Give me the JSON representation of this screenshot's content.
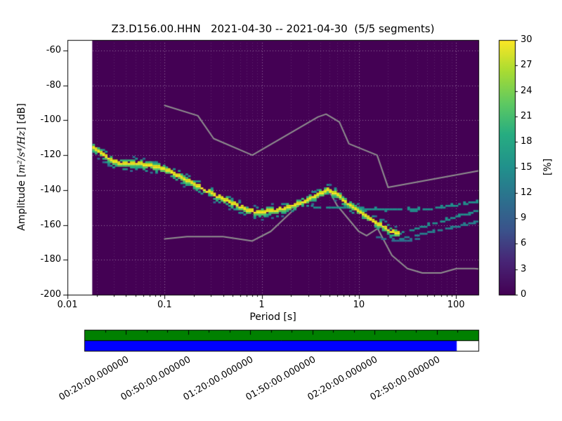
{
  "title": "Z3.D156.00.HHN   2021-04-30 -- 2021-04-30  (5/5 segments)",
  "axes": {
    "xlabel": "Period [s]",
    "ylabel_pre": "Amplitude [",
    "ylabel_math": "m²/s⁴/Hz",
    "ylabel_post": "]  [dB]",
    "x_tick_labels": [
      "0.01",
      "0.1",
      "1",
      "10",
      "100"
    ],
    "y_tick_labels": [
      "-60",
      "-80",
      "-100",
      "-120",
      "-140",
      "-160",
      "-180",
      "-200"
    ]
  },
  "colorbar": {
    "label": "[%]",
    "tick_labels": [
      "0",
      "3",
      "6",
      "9",
      "12",
      "15",
      "18",
      "21",
      "24",
      "27",
      "30"
    ]
  },
  "timeline": {
    "time_labels": [
      "00:20:00.000000",
      "00:50:00.000000",
      "01:20:00.000000",
      "01:50:00.000000",
      "02:20:00.000000",
      "02:50:00.000000"
    ],
    "label_minutes": [
      20,
      50,
      80,
      110,
      140,
      170
    ],
    "total_minutes": 190,
    "green_color": "#008000",
    "blue_color": "#0000ff",
    "blue_coverage_fraction": 0.945
  },
  "chart_data": {
    "type": "heatmap",
    "subtype": "ppsd-probability-histogram",
    "title": "Z3.D156.00.HHN  2021-04-30 -- 2021-04-30  (5/5 segments)",
    "xlabel": "Period [s]",
    "ylabel": "Amplitude [m^2/s^4/Hz] [dB]",
    "xscale": "log",
    "yscale": "linear",
    "xlim": [
      0.01,
      170
    ],
    "ylim": [
      -200,
      -54
    ],
    "x_ticks": [
      0.01,
      0.1,
      1,
      10,
      100
    ],
    "y_ticks": [
      -200,
      -180,
      -160,
      -140,
      -120,
      -100,
      -80,
      -60
    ],
    "grid": true,
    "background": {
      "color": "#440154",
      "percent": 0,
      "data_min_period": 0.018
    },
    "colorbar": {
      "label": "[%]",
      "min": 0,
      "max": 30,
      "ticks": [
        0,
        3,
        6,
        9,
        12,
        15,
        18,
        21,
        24,
        27,
        30
      ],
      "colormap": "viridis",
      "gradient": [
        [
          0,
          "#440154"
        ],
        [
          0.13,
          "#482576"
        ],
        [
          0.25,
          "#3b528b"
        ],
        [
          0.38,
          "#2c728e"
        ],
        [
          0.5,
          "#21918c"
        ],
        [
          0.63,
          "#27ad81"
        ],
        [
          0.75,
          "#5ec962"
        ],
        [
          0.88,
          "#aadc32"
        ],
        [
          1,
          "#fde725"
        ]
      ]
    },
    "mode_curve": {
      "name": "psd-mode",
      "color": "#fde725",
      "points": [
        [
          0.018,
          -116
        ],
        [
          0.023,
          -120
        ],
        [
          0.029,
          -124
        ],
        [
          0.037,
          -125.5
        ],
        [
          0.056,
          -125.5
        ],
        [
          0.085,
          -127
        ],
        [
          0.1,
          -128.5
        ],
        [
          0.15,
          -133.5
        ],
        [
          0.25,
          -140
        ],
        [
          0.41,
          -146
        ],
        [
          0.68,
          -151.5
        ],
        [
          0.85,
          -153
        ],
        [
          1.1,
          -152.5
        ],
        [
          1.6,
          -151
        ],
        [
          2.7,
          -147
        ],
        [
          3.7,
          -142.5
        ],
        [
          4.7,
          -140.3
        ],
        [
          6,
          -143.5
        ],
        [
          7.7,
          -148.5
        ],
        [
          9.9,
          -152.5
        ],
        [
          12.7,
          -156.5
        ],
        [
          16.3,
          -160.5
        ],
        [
          21,
          -164
        ],
        [
          24.7,
          -165.5
        ]
      ]
    },
    "branches": [
      {
        "name": "psd-branch-upper",
        "color": "#21918c",
        "points": [
          [
            3.2,
            -149.5
          ],
          [
            5,
            -150
          ],
          [
            8,
            -150.5
          ],
          [
            13,
            -151
          ],
          [
            21,
            -151.5
          ],
          [
            34,
            -151.5
          ],
          [
            55,
            -150.5
          ],
          [
            90,
            -149
          ],
          [
            130,
            -147.5
          ],
          [
            170,
            -146.5
          ]
        ]
      },
      {
        "name": "psd-branch-mid",
        "color": "#21918c",
        "points": [
          [
            23,
            -165.5
          ],
          [
            32,
            -163.5
          ],
          [
            45,
            -161
          ],
          [
            65,
            -158.5
          ],
          [
            95,
            -155.5
          ],
          [
            130,
            -153.5
          ],
          [
            170,
            -151.5
          ]
        ]
      },
      {
        "name": "psd-branch-lower",
        "color": "#26828e",
        "points": [
          [
            26,
            -168
          ],
          [
            38,
            -166
          ],
          [
            55,
            -164
          ],
          [
            80,
            -162
          ],
          [
            115,
            -160
          ],
          [
            150,
            -158.5
          ],
          [
            170,
            -158
          ]
        ]
      },
      {
        "name": "psd-branch-faint",
        "color": "#2c728e",
        "points": [
          [
            15,
            -167
          ],
          [
            20,
            -168.5
          ],
          [
            28,
            -169.5
          ],
          [
            40,
            -168
          ]
        ]
      }
    ],
    "noise_models": [
      {
        "name": "NHNM",
        "color": "#8f8f8f",
        "points": [
          [
            0.1,
            -91.5
          ],
          [
            0.22,
            -97.4
          ],
          [
            0.32,
            -110.5
          ],
          [
            0.8,
            -120
          ],
          [
            3.8,
            -98.1
          ],
          [
            4.6,
            -96.5
          ],
          [
            6.3,
            -101
          ],
          [
            7.9,
            -113.5
          ],
          [
            15.4,
            -120
          ],
          [
            20,
            -138.5
          ],
          [
            170,
            -129
          ]
        ]
      },
      {
        "name": "NLNM",
        "color": "#8f8f8f",
        "points": [
          [
            0.1,
            -168
          ],
          [
            0.17,
            -166.7
          ],
          [
            0.4,
            -166.7
          ],
          [
            0.8,
            -169.2
          ],
          [
            1.24,
            -163.7
          ],
          [
            2.4,
            -148.6
          ],
          [
            4.3,
            -141.1
          ],
          [
            5,
            -141.1
          ],
          [
            6,
            -149
          ],
          [
            10,
            -163.8
          ],
          [
            12,
            -166.2
          ],
          [
            15.6,
            -162.1
          ],
          [
            21.9,
            -177.5
          ],
          [
            31.6,
            -185
          ],
          [
            45,
            -187.5
          ],
          [
            70,
            -187.5
          ],
          [
            101,
            -185
          ],
          [
            154,
            -185
          ],
          [
            170,
            -185.2
          ]
        ]
      }
    ]
  }
}
